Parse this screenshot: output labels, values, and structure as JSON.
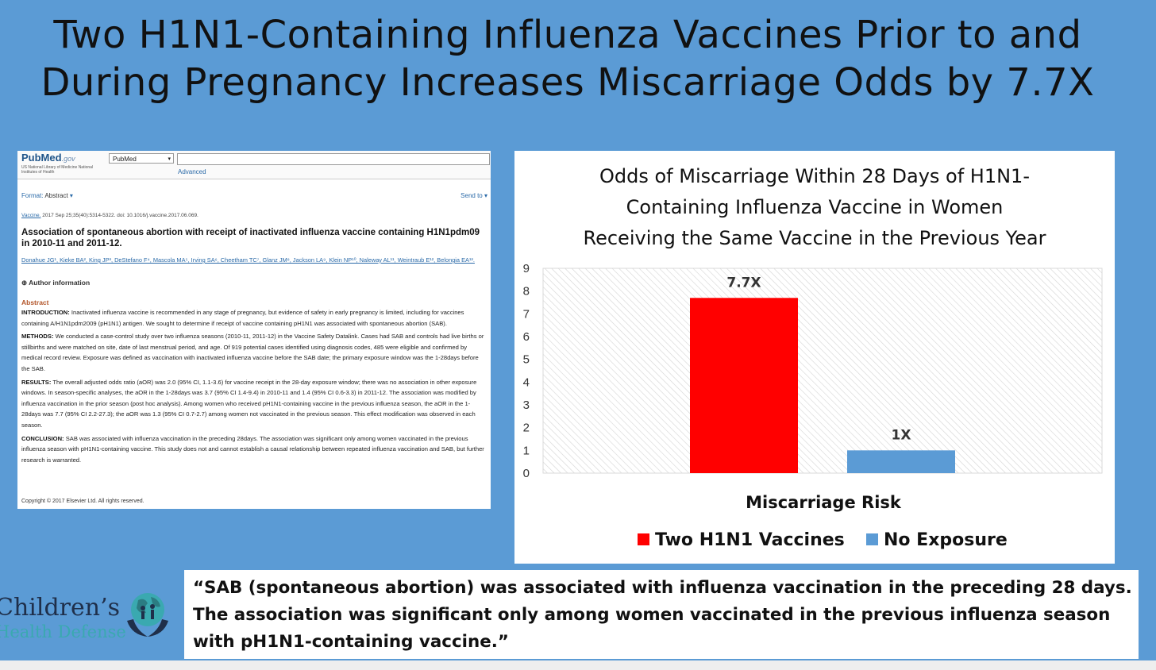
{
  "slide": {
    "title_lines": [
      "Two H1N1-Containing Influenza Vaccines Prior to and",
      "During Pregnancy Increases Miscarriage Odds by 7.7X"
    ]
  },
  "pubmed": {
    "logo": "PubMed",
    "logo_suffix": ".gov",
    "nlm": "US National Library of Medicine National Institutes of Health",
    "db_select": "PubMed",
    "search_value": "",
    "advanced": "Advanced",
    "format_label": "Format:",
    "format_value": "Abstract",
    "send_to": "Send to",
    "citation_journal": "Vaccine.",
    "citation_rest": "2017 Sep 25;35(40):5314-5322. doi: 10.1016/j.vaccine.2017.06.069.",
    "article_title": "Association of spontaneous abortion with receipt of inactivated influenza vaccine containing H1N1pdm09 in 2010-11 and 2011-12.",
    "authors": "Donahue JG¹, Kieke BA², King JP³, DeStefano F⁴, Mascola MA⁵, Irving SA⁶, Cheetham TC⁷, Glanz JM⁸, Jackson LA⁹, Klein NP¹⁰, Naleway AL¹¹, Weintraub E¹², Belongia EA¹³.",
    "author_info": "Author information",
    "abstract_heading": "Abstract",
    "intro_label": "INTRODUCTION:",
    "intro_text": "Inactivated influenza vaccine is recommended in any stage of pregnancy, but evidence of safety in early pregnancy is limited, including for vaccines containing A/H1N1pdm2009 (pH1N1) antigen. We sought to determine if receipt of vaccine containing pH1N1 was associated with spontaneous abortion (SAB).",
    "methods_label": "METHODS:",
    "methods_text": "We conducted a case-control study over two influenza seasons (2010-11, 2011-12) in the Vaccine Safety Datalink. Cases had SAB and controls had live births or stillbirths and were matched on site, date of last menstrual period, and age. Of 919 potential cases identified using diagnosis codes, 485 were eligible and confirmed by medical record review. Exposure was defined as vaccination with inactivated influenza vaccine before the SAB date; the primary exposure window was the 1-28days before the SAB.",
    "results_label": "RESULTS:",
    "results_text": "The overall adjusted odds ratio (aOR) was 2.0 (95% CI, 1.1-3.6) for vaccine receipt in the 28-day exposure window; there was no association in other exposure windows. In season-specific analyses, the aOR in the 1-28days was 3.7 (95% CI 1.4-9.4) in 2010-11 and 1.4 (95% CI 0.6-3.3) in 2011-12. The association was modified by influenza vaccination in the prior season (post hoc analysis). Among women who received pH1N1-containing vaccine in the previous influenza season, the aOR in the 1-28days was 7.7 (95% CI 2.2-27.3); the aOR was 1.3 (95% CI 0.7-2.7) among women not vaccinated in the previous season. This effect modification was observed in each season.",
    "conclusion_label": "CONCLUSION:",
    "conclusion_text": "SAB was associated with influenza vaccination in the preceding 28days. The association was significant only among women vaccinated in the previous influenza season with pH1N1-containing vaccine. This study does not and cannot establish a causal relationship between repeated influenza vaccination and SAB, but further research is warranted.",
    "copyright": "Copyright © 2017 Elsevier Ltd. All rights reserved."
  },
  "chart_data": {
    "type": "bar",
    "title_lines": [
      "Odds of Miscarriage Within 28 Days of H1N1-",
      "Containing Influenza Vaccine in Women",
      "Receiving the Same Vaccine in the Previous Year"
    ],
    "categories": [
      "Miscarriage Risk"
    ],
    "xlabel": "Miscarriage Risk",
    "ylabel": "",
    "ylim": [
      0,
      9
    ],
    "yticks": [
      0,
      1,
      2,
      3,
      4,
      5,
      6,
      7,
      8,
      9
    ],
    "series": [
      {
        "name": "Two H1N1 Vaccines",
        "values": [
          7.7
        ],
        "label": "7.7X",
        "color": "#ff0000"
      },
      {
        "name": "No Exposure",
        "values": [
          1
        ],
        "label": "1X",
        "color": "#5b9bd5"
      }
    ],
    "grid": false,
    "legend": "bottom"
  },
  "quote": {
    "text": "“SAB (spontaneous abortion) was associated with influenza vaccination in the preceding 28 days. The association was significant only among women vaccinated in the previous influenza season with pH1N1-containing vaccine.”"
  },
  "logo": {
    "line1": "Children’s",
    "line2": "Health Defense"
  }
}
